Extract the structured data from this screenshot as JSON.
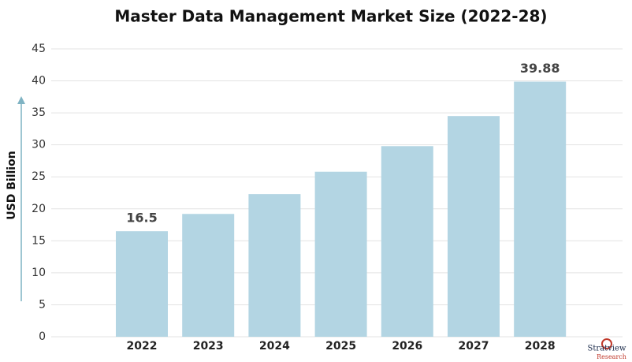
{
  "chart_data": {
    "type": "bar",
    "title": "Master Data Management Market Size (2022-28)",
    "ylabel": "USD Billion",
    "categories": [
      "2022",
      "2023",
      "2024",
      "2025",
      "2026",
      "2027",
      "2028"
    ],
    "values": [
      16.5,
      19.2,
      22.3,
      25.8,
      29.8,
      34.5,
      39.88
    ],
    "value_labels": [
      "16.5",
      null,
      null,
      null,
      null,
      null,
      "39.88"
    ],
    "color": "#b3d5e3",
    "ylim": [
      0,
      45
    ],
    "yticks": [
      0,
      5,
      10,
      15,
      20,
      25,
      30,
      35,
      40,
      45
    ],
    "grid": true
  },
  "logo": {
    "name": "Stratview",
    "sub": "Research"
  }
}
